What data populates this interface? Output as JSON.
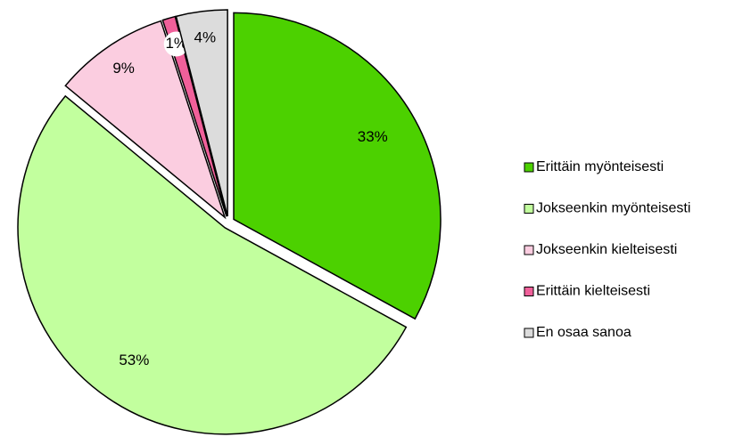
{
  "chart_data": {
    "type": "pie",
    "categories": [
      "Erittäin myönteisesti",
      "Jokseenkin myönteisesti",
      "Jokseenkin kielteisesti",
      "Erittäin kielteisesti",
      "En osaa sanoa"
    ],
    "values": [
      33,
      53,
      9,
      1,
      4
    ],
    "value_labels": [
      "33%",
      "53%",
      "9%",
      "1%",
      "4%"
    ],
    "colors": [
      "#4cd100",
      "#c2ff9e",
      "#fbcde0",
      "#f0609a",
      "#dcdcdc"
    ]
  }
}
